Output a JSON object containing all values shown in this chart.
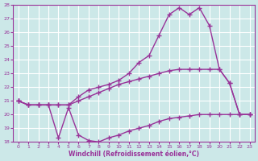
{
  "xlabel": "Windchill (Refroidissement éolien,°C)",
  "background_color": "#cce8e8",
  "grid_color": "#ffffff",
  "line_color": "#993399",
  "xlim": [
    -0.5,
    23.5
  ],
  "ylim": [
    18,
    28
  ],
  "yticks": [
    18,
    19,
    20,
    21,
    22,
    23,
    24,
    25,
    26,
    27,
    28
  ],
  "xticks": [
    0,
    1,
    2,
    3,
    4,
    5,
    6,
    7,
    8,
    9,
    10,
    11,
    12,
    13,
    14,
    15,
    16,
    17,
    18,
    19,
    20,
    21,
    22,
    23
  ],
  "line1_x": [
    0,
    1,
    2,
    3,
    4,
    5,
    6,
    7,
    8,
    9,
    10,
    11,
    12,
    13,
    14,
    15,
    16,
    17,
    18,
    19,
    20,
    21,
    22,
    23
  ],
  "line1_y": [
    21.0,
    20.7,
    20.7,
    20.7,
    20.7,
    20.7,
    21.0,
    21.3,
    21.6,
    21.9,
    22.2,
    22.4,
    22.6,
    22.8,
    23.0,
    23.2,
    23.3,
    23.3,
    23.3,
    23.3,
    23.3,
    22.3,
    20.0,
    20.0
  ],
  "line2_x": [
    0,
    1,
    2,
    3,
    4,
    5,
    6,
    7,
    8,
    9,
    10,
    11,
    12,
    13,
    14,
    15,
    16,
    17,
    18,
    19,
    20,
    21,
    22,
    23
  ],
  "line2_y": [
    21.0,
    20.7,
    20.7,
    20.7,
    18.3,
    20.5,
    18.5,
    18.1,
    18.0,
    18.3,
    18.5,
    18.8,
    19.0,
    19.2,
    19.5,
    19.7,
    19.8,
    19.9,
    20.0,
    20.0,
    20.0,
    20.0,
    20.0,
    20.0
  ],
  "line3_x": [
    0,
    1,
    2,
    3,
    4,
    5,
    6,
    7,
    8,
    9,
    10,
    11,
    12,
    13,
    14,
    15,
    16,
    17,
    18,
    19,
    20,
    21,
    22,
    23
  ],
  "line3_y": [
    21.0,
    20.7,
    20.7,
    20.7,
    20.7,
    20.7,
    21.3,
    21.8,
    22.0,
    22.2,
    22.5,
    23.0,
    23.8,
    24.3,
    25.8,
    27.3,
    27.8,
    27.3,
    27.8,
    26.5,
    23.3,
    22.3,
    20.0,
    20.0
  ]
}
